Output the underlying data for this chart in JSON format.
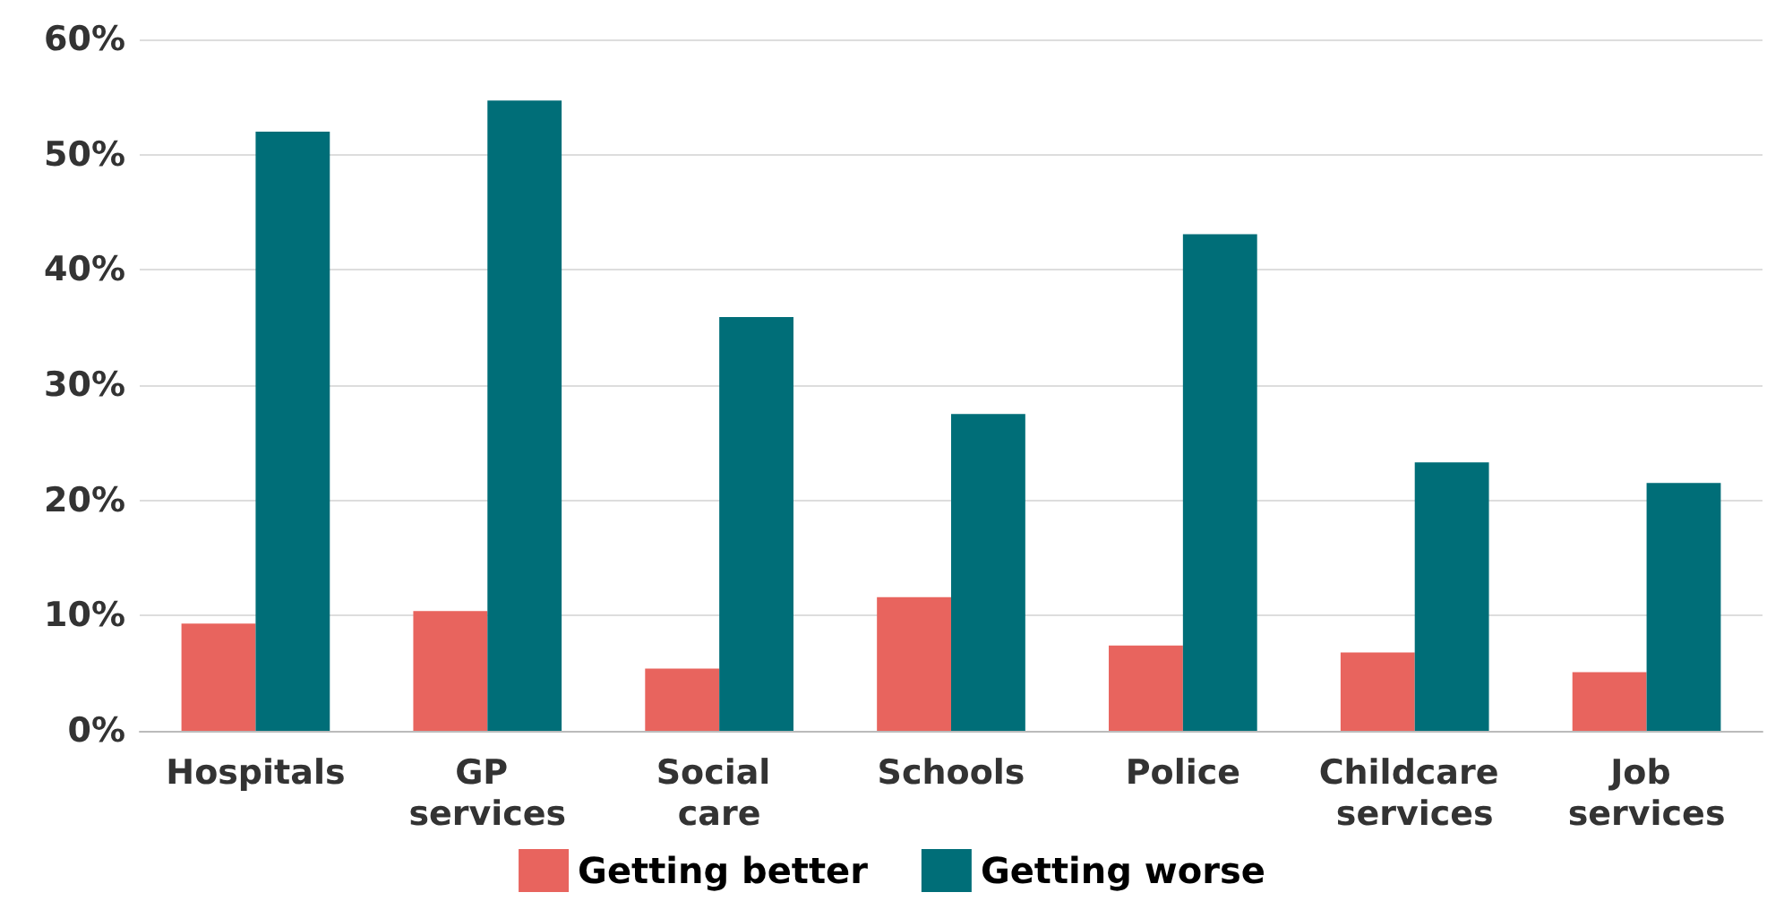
{
  "chart_data": {
    "type": "bar",
    "categories": [
      "Hospitals",
      "GP services",
      "Social care",
      "Schools",
      "Police",
      "Childcare services",
      "Job services"
    ],
    "series": [
      {
        "name": "Getting better",
        "color": "#e8645e",
        "values": [
          9.3,
          10.4,
          5.4,
          11.6,
          7.4,
          6.8,
          5.1
        ]
      },
      {
        "name": "Getting worse",
        "color": "#006e78",
        "values": [
          52.0,
          54.7,
          35.9,
          27.5,
          43.1,
          23.3,
          21.5
        ]
      }
    ],
    "ylim": [
      0,
      60
    ],
    "yticks": [
      {
        "value": 0,
        "label": "0%"
      },
      {
        "value": 10,
        "label": "10%"
      },
      {
        "value": 20,
        "label": "20%"
      },
      {
        "value": 30,
        "label": "30%"
      },
      {
        "value": 40,
        "label": "40%"
      },
      {
        "value": 50,
        "label": "50%"
      },
      {
        "value": 60,
        "label": "60%"
      }
    ],
    "grid": "y",
    "legend": "bottom"
  }
}
